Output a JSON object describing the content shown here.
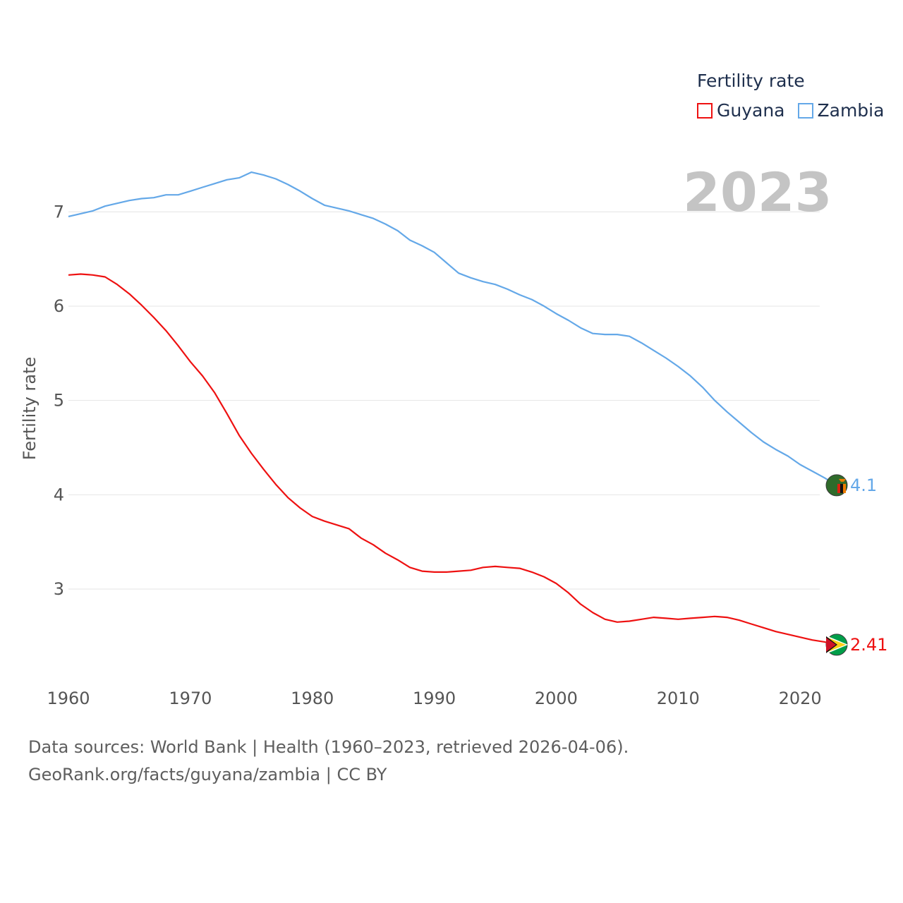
{
  "legend": {
    "title": "Fertility rate",
    "items": [
      {
        "label": "Guyana",
        "color": "#ee1111"
      },
      {
        "label": "Zambia",
        "color": "#64a8e8"
      }
    ]
  },
  "year_label": "2023",
  "source": {
    "line1": "Data sources: World Bank | Health (1960–2023, retrieved 2026-04-06).",
    "line2": "GeoRank.org/facts/guyana/zambia | CC BY"
  },
  "chart_data": {
    "type": "line",
    "title": "Fertility rate",
    "xlabel": "",
    "ylabel": "Fertility rate",
    "xlim": [
      1960,
      2023
    ],
    "ylim": [
      2.05,
      7.75
    ],
    "x_ticks": [
      1960,
      1970,
      1980,
      1990,
      2000,
      2010,
      2020
    ],
    "y_ticks": [
      3,
      4,
      5,
      6,
      7
    ],
    "grid": true,
    "legend_position": "top-right",
    "x": [
      1960,
      1961,
      1962,
      1963,
      1964,
      1965,
      1966,
      1967,
      1968,
      1969,
      1970,
      1971,
      1972,
      1973,
      1974,
      1975,
      1976,
      1977,
      1978,
      1979,
      1980,
      1981,
      1982,
      1983,
      1984,
      1985,
      1986,
      1987,
      1988,
      1989,
      1990,
      1991,
      1992,
      1993,
      1994,
      1995,
      1996,
      1997,
      1998,
      1999,
      2000,
      2001,
      2002,
      2003,
      2004,
      2005,
      2006,
      2007,
      2008,
      2009,
      2010,
      2011,
      2012,
      2013,
      2014,
      2015,
      2016,
      2017,
      2018,
      2019,
      2020,
      2021,
      2022,
      2023
    ],
    "series": [
      {
        "name": "Guyana",
        "color": "#ee1111",
        "end_label": "2.41",
        "values": [
          6.33,
          6.34,
          6.33,
          6.31,
          6.23,
          6.13,
          6.01,
          5.88,
          5.74,
          5.58,
          5.41,
          5.26,
          5.08,
          4.86,
          4.63,
          4.44,
          4.27,
          4.11,
          3.97,
          3.86,
          3.77,
          3.72,
          3.68,
          3.64,
          3.54,
          3.47,
          3.38,
          3.31,
          3.23,
          3.19,
          3.18,
          3.18,
          3.19,
          3.2,
          3.23,
          3.24,
          3.23,
          3.22,
          3.18,
          3.13,
          3.06,
          2.96,
          2.84,
          2.75,
          2.68,
          2.65,
          2.66,
          2.68,
          2.7,
          2.69,
          2.68,
          2.69,
          2.7,
          2.71,
          2.7,
          2.67,
          2.63,
          2.59,
          2.55,
          2.52,
          2.49,
          2.46,
          2.44,
          2.41
        ]
      },
      {
        "name": "Zambia",
        "color": "#64a8e8",
        "end_label": "4.1",
        "values": [
          6.95,
          6.98,
          7.01,
          7.06,
          7.09,
          7.12,
          7.14,
          7.15,
          7.18,
          7.18,
          7.22,
          7.26,
          7.3,
          7.34,
          7.36,
          7.42,
          7.39,
          7.35,
          7.29,
          7.22,
          7.14,
          7.07,
          7.04,
          7.01,
          6.97,
          6.93,
          6.87,
          6.8,
          6.7,
          6.64,
          6.57,
          6.46,
          6.35,
          6.3,
          6.26,
          6.23,
          6.18,
          6.12,
          6.07,
          6.0,
          5.92,
          5.85,
          5.77,
          5.71,
          5.7,
          5.7,
          5.68,
          5.61,
          5.53,
          5.45,
          5.36,
          5.26,
          5.14,
          5.0,
          4.88,
          4.77,
          4.66,
          4.56,
          4.48,
          4.41,
          4.32,
          4.25,
          4.18,
          4.1
        ]
      }
    ]
  }
}
